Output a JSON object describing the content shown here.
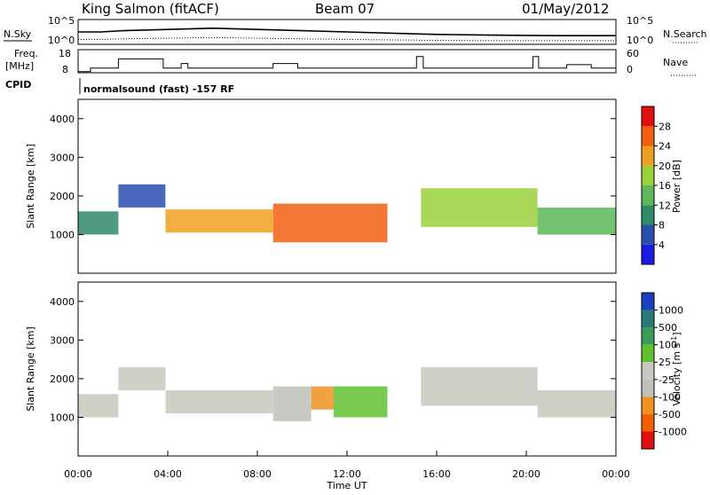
{
  "header": {
    "station": "King Salmon (fitACF)",
    "beam": "Beam 07",
    "date": "01/May/2012",
    "cpid_label": "CPID",
    "cpid_value": "normalsound (fast) -157 RF"
  },
  "chart_data": [
    {
      "type": "line",
      "name": "sky-noise-search-noise",
      "left_label": "N.Sky",
      "right_label": "N.Search",
      "left_ticks": [
        "10^5",
        "10^0"
      ],
      "right_ticks": [
        "10^5",
        "10^0"
      ],
      "x": [
        0,
        1,
        2,
        4,
        6,
        8,
        10,
        12,
        14,
        16,
        18,
        20,
        22,
        24
      ],
      "series": [
        {
          "values": [
            0.5,
            0.5,
            0.55,
            0.6,
            0.65,
            0.6,
            0.55,
            0.5,
            0.45,
            0.4,
            0.38,
            0.36,
            0.35,
            0.35
          ]
        },
        {
          "values": [
            0.2,
            0.2,
            0.22,
            0.25,
            0.27,
            0.25,
            0.22,
            0.2,
            0.18,
            0.16,
            0.15,
            0.15,
            0.15,
            0.15
          ]
        }
      ]
    },
    {
      "type": "line",
      "name": "frequency-nave",
      "left_label": "Freq.",
      "left_unit": "[MHz]",
      "right_label": "Nave",
      "left_ticks": [
        "18",
        "8"
      ],
      "right_ticks": [
        "60",
        "0"
      ],
      "freq_steps": [
        [
          0,
          0.55,
          8.5
        ],
        [
          0.55,
          1.8,
          10
        ],
        [
          1.8,
          3.8,
          14
        ],
        [
          3.8,
          4.6,
          10
        ],
        [
          4.6,
          4.9,
          12
        ],
        [
          4.9,
          8.7,
          10
        ],
        [
          8.7,
          9.8,
          12
        ],
        [
          9.8,
          15.1,
          10
        ],
        [
          15.1,
          15.4,
          15
        ],
        [
          15.4,
          20.3,
          10
        ],
        [
          20.3,
          20.55,
          15
        ],
        [
          20.55,
          21.8,
          10
        ],
        [
          21.8,
          22.9,
          11.5
        ],
        [
          22.9,
          24,
          10
        ]
      ]
    },
    {
      "type": "heatmap",
      "name": "power",
      "ylabel": "Slant Range [km]",
      "ylim": [
        0,
        4500
      ],
      "yticks": [
        1000,
        2000,
        3000,
        4000
      ],
      "xlim": [
        0,
        24
      ],
      "colorbar_label": "Power [dB]",
      "colorbar_ticks": [
        4,
        8,
        12,
        16,
        20,
        24,
        28
      ],
      "colors": [
        "#1a1ae6",
        "#2a4fb0",
        "#2f8a6a",
        "#5cb85a",
        "#9ad03a",
        "#f0a020",
        "#f06010",
        "#e01010"
      ],
      "features": [
        {
          "x0": 0,
          "x1": 1.8,
          "r0": 1000,
          "r1": 1600,
          "level": 2
        },
        {
          "x0": 1.8,
          "x1": 3.9,
          "r0": 1700,
          "r1": 2300,
          "level": 1
        },
        {
          "x0": 3.9,
          "x1": 8.7,
          "r0": 1050,
          "r1": 1650,
          "level": 5
        },
        {
          "x0": 8.7,
          "x1": 13.8,
          "r0": 800,
          "r1": 1800,
          "level": 6
        },
        {
          "x0": 15.3,
          "x1": 20.5,
          "r0": 1200,
          "r1": 2200,
          "level": 4
        },
        {
          "x0": 20.5,
          "x1": 24,
          "r0": 1000,
          "r1": 1700,
          "level": 3
        }
      ]
    },
    {
      "type": "heatmap",
      "name": "velocity",
      "ylabel": "Slant Range [km]",
      "xlabel": "Time UT",
      "ylim": [
        0,
        4500
      ],
      "yticks": [
        1000,
        2000,
        3000,
        4000
      ],
      "xlim": [
        0,
        24
      ],
      "xticks": [
        "00:00",
        "04:00",
        "08:00",
        "12:00",
        "16:00",
        "20:00",
        "00:00"
      ],
      "colorbar_label": "Velocity [m s^-1]",
      "colorbar_ticks": [
        1000,
        500,
        100,
        25,
        -25,
        -100,
        -500,
        -1000
      ],
      "colors": [
        "#1a40c0",
        "#2a7a7a",
        "#3a9a5a",
        "#60c030",
        "#c8c8c0",
        "#c0c0b8",
        "#f09020",
        "#f06000",
        "#e01010"
      ],
      "features": [
        {
          "x0": 0,
          "x1": 1.8,
          "r0": 1000,
          "r1": 1600,
          "level": 4
        },
        {
          "x0": 1.8,
          "x1": 3.9,
          "r0": 1700,
          "r1": 2300,
          "level": 4
        },
        {
          "x0": 3.9,
          "x1": 8.7,
          "r0": 1100,
          "r1": 1700,
          "level": 4
        },
        {
          "x0": 8.7,
          "x1": 10.4,
          "r0": 900,
          "r1": 1800,
          "level": 5
        },
        {
          "x0": 10.4,
          "x1": 11.4,
          "r0": 1200,
          "r1": 1800,
          "level": 6
        },
        {
          "x0": 11.4,
          "x1": 13.8,
          "r0": 1000,
          "r1": 1800,
          "level": 3
        },
        {
          "x0": 15.3,
          "x1": 20.5,
          "r0": 1300,
          "r1": 2300,
          "level": 4
        },
        {
          "x0": 20.5,
          "x1": 24,
          "r0": 1000,
          "r1": 1700,
          "level": 4
        }
      ]
    }
  ]
}
